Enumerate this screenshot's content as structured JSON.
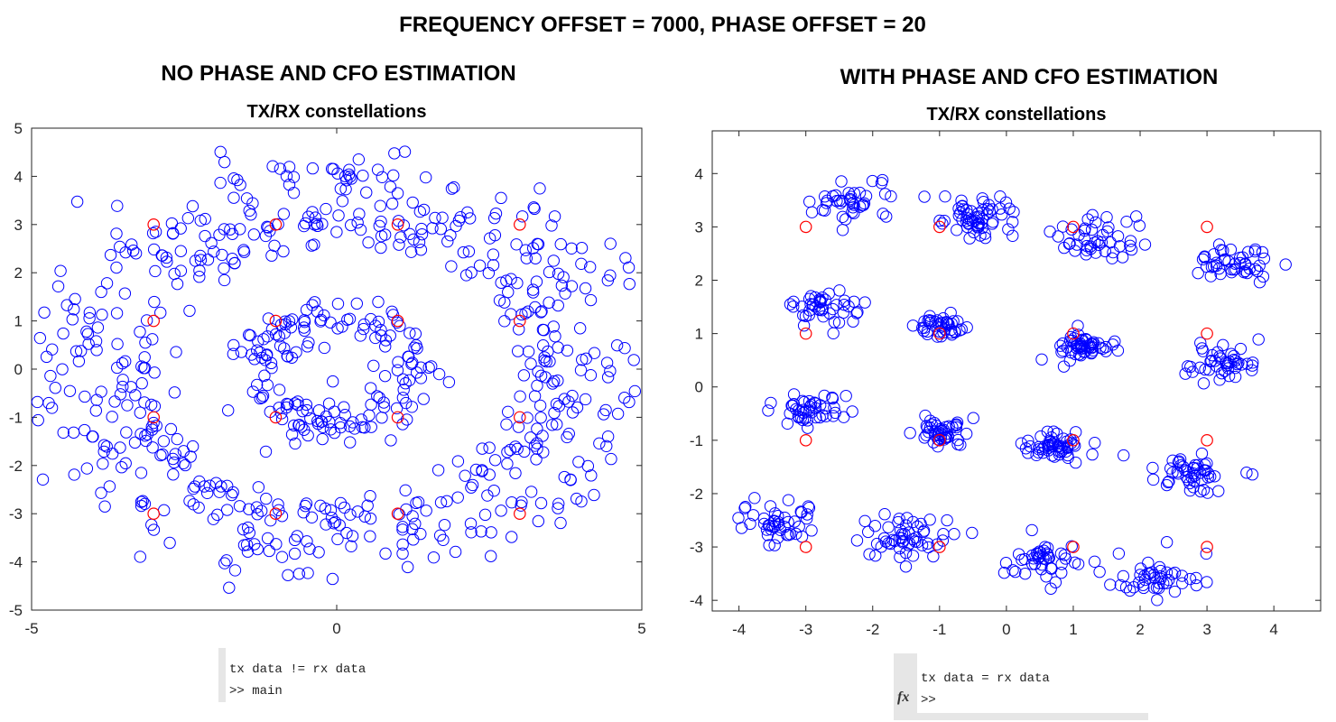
{
  "header": {
    "title": "FREQUENCY OFFSET = 7000, PHASE OFFSET = 20"
  },
  "panels": [
    {
      "heading": "NO PHASE AND CFO ESTIMATION"
    },
    {
      "heading": "WITH PHASE AND CFO ESTIMATION"
    }
  ],
  "consoles": [
    {
      "lines": [
        "tx data != rx data",
        ">> main"
      ]
    },
    {
      "lines": [
        "tx data = rx data",
        ">>"
      ],
      "fx_label": "fx"
    }
  ],
  "chart_data": [
    {
      "type": "scatter",
      "title": "TX/RX constellations",
      "xlabel": "",
      "ylabel": "",
      "xlim": [
        -5,
        5
      ],
      "ylim": [
        -5,
        5
      ],
      "xticks": [
        -5,
        0,
        5
      ],
      "yticks": [
        5,
        4,
        3,
        2,
        1,
        0,
        -1,
        -2,
        -3,
        -4,
        -5
      ],
      "grid": false,
      "series": [
        {
          "role": "rx",
          "color": "#0000ff",
          "marker": "circle",
          "pattern": "16-QAM rotated by frequency offset into concentric rings",
          "rings": [
            {
              "radius": 1.15,
              "spread": 0.22,
              "count": 170
            },
            {
              "radius": 3.05,
              "spread": 0.25,
              "count": 250
            },
            {
              "radius": 3.9,
              "spread": 0.45,
              "count": 330
            }
          ]
        },
        {
          "role": "tx",
          "color": "#ff0000",
          "marker": "circle",
          "x": [
            -3,
            -1,
            1,
            3,
            -3,
            -1,
            1,
            3,
            -3,
            -1,
            1,
            3,
            -3,
            -1,
            1,
            3
          ],
          "y": [
            3,
            3,
            3,
            3,
            1,
            1,
            1,
            1,
            -1,
            -1,
            -1,
            -1,
            -3,
            -3,
            -3,
            -3
          ]
        }
      ]
    },
    {
      "type": "scatter",
      "title": "TX/RX constellations",
      "xlabel": "",
      "ylabel": "",
      "xlim": [
        -4.4,
        4.7
      ],
      "ylim": [
        -4.2,
        4.8
      ],
      "xticks": [
        -4,
        -3,
        -2,
        -1,
        0,
        1,
        2,
        3,
        4
      ],
      "yticks": [
        4,
        3,
        2,
        1,
        0,
        -1,
        -2,
        -3,
        -4
      ],
      "grid": false,
      "series": [
        {
          "role": "rx",
          "color": "#0000ff",
          "marker": "circle",
          "pattern": "16 compact clusters near ideal 16-QAM points",
          "clusters": [
            {
              "x": -2.3,
              "y": 3.45,
              "spread": 0.28,
              "count": 40
            },
            {
              "x": -0.5,
              "y": 3.15,
              "spread": 0.25,
              "count": 60
            },
            {
              "x": 1.35,
              "y": 2.75,
              "spread": 0.28,
              "count": 45
            },
            {
              "x": 3.4,
              "y": 2.3,
              "spread": 0.25,
              "count": 45
            },
            {
              "x": -2.75,
              "y": 1.5,
              "spread": 0.25,
              "count": 45
            },
            {
              "x": -0.9,
              "y": 1.15,
              "spread": 0.18,
              "count": 40
            },
            {
              "x": 1.1,
              "y": 0.75,
              "spread": 0.2,
              "count": 55
            },
            {
              "x": 3.2,
              "y": 0.45,
              "spread": 0.25,
              "count": 45
            },
            {
              "x": -2.95,
              "y": -0.45,
              "spread": 0.22,
              "count": 45
            },
            {
              "x": -1.0,
              "y": -0.85,
              "spread": 0.2,
              "count": 45
            },
            {
              "x": 0.75,
              "y": -1.15,
              "spread": 0.2,
              "count": 55
            },
            {
              "x": 2.8,
              "y": -1.6,
              "spread": 0.25,
              "count": 50
            },
            {
              "x": -3.4,
              "y": -2.45,
              "spread": 0.3,
              "count": 45
            },
            {
              "x": -1.45,
              "y": -2.8,
              "spread": 0.3,
              "count": 55
            },
            {
              "x": 0.6,
              "y": -3.25,
              "spread": 0.28,
              "count": 45
            },
            {
              "x": 2.25,
              "y": -3.6,
              "spread": 0.3,
              "count": 45
            }
          ]
        },
        {
          "role": "tx",
          "color": "#ff0000",
          "marker": "circle",
          "x": [
            -3,
            -1,
            1,
            3,
            -3,
            -1,
            1,
            3,
            -3,
            -1,
            1,
            3,
            -3,
            -1,
            1,
            3
          ],
          "y": [
            3,
            3,
            3,
            3,
            1,
            1,
            1,
            1,
            -1,
            -1,
            -1,
            -1,
            -3,
            -3,
            -3,
            -3
          ]
        }
      ]
    }
  ]
}
